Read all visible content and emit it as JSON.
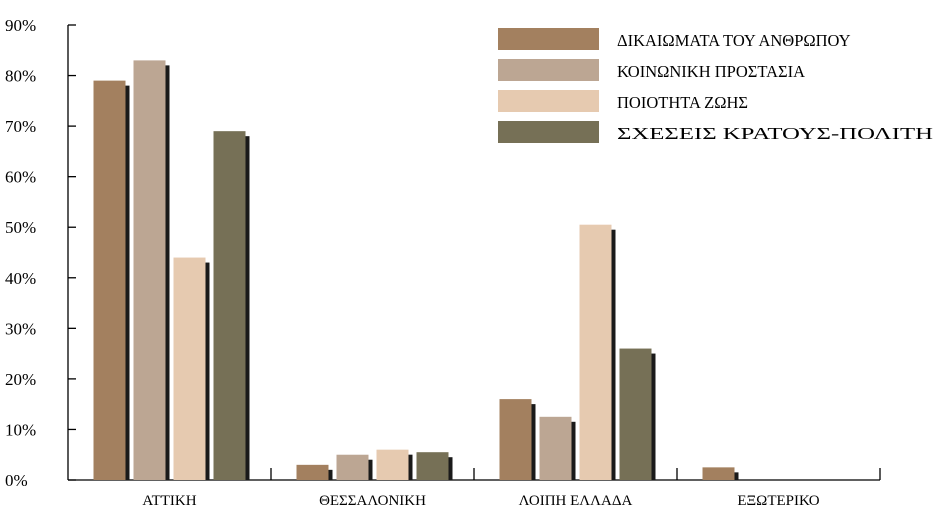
{
  "chart_data": {
    "type": "bar",
    "categories": [
      "ΑΤΤΙΚΗ",
      "ΘΕΣΣΑΛΟΝΙΚΗ",
      "ΛΟΙΠΗ ΕΛΛΑΔΑ",
      "ΕΞΩΤΕΡΙΚΟ"
    ],
    "series": [
      {
        "name": "ΔΙΚΑΙΩΜΑΤΑ ΤΟΥ ΑΝΘΡΩΠΟΥ",
        "color": "#a3805f",
        "values": [
          79,
          3,
          16,
          2.5
        ]
      },
      {
        "name": "ΚΟΙΝΩΝΙΚΗ ΠΡΟΣΤΑΣΙΑ",
        "color": "#bca693",
        "values": [
          83,
          5,
          12.5,
          0
        ]
      },
      {
        "name": "ΠΟΙΟΤΗΤΑ ΖΩΗΣ",
        "color": "#e6cab0",
        "values": [
          44,
          6,
          50.5,
          0
        ]
      },
      {
        "name": "ΣΧΕΣΕΙΣ ΚΡΑΤΟΥΣ-ΠΟΛΙΤΗ",
        "color": "#767056",
        "values": [
          69,
          5.5,
          26,
          0
        ]
      }
    ],
    "ylim": [
      0,
      90
    ],
    "yticks": [
      "0%",
      "10%",
      "20%",
      "30%",
      "40%",
      "50%",
      "60%",
      "70%",
      "80%",
      "90%"
    ],
    "ytick_values": [
      0,
      10,
      20,
      30,
      40,
      50,
      60,
      70,
      80,
      90
    ],
    "legend_position": "top-right",
    "grid": false,
    "shadow_color": "#1a1a1a"
  }
}
